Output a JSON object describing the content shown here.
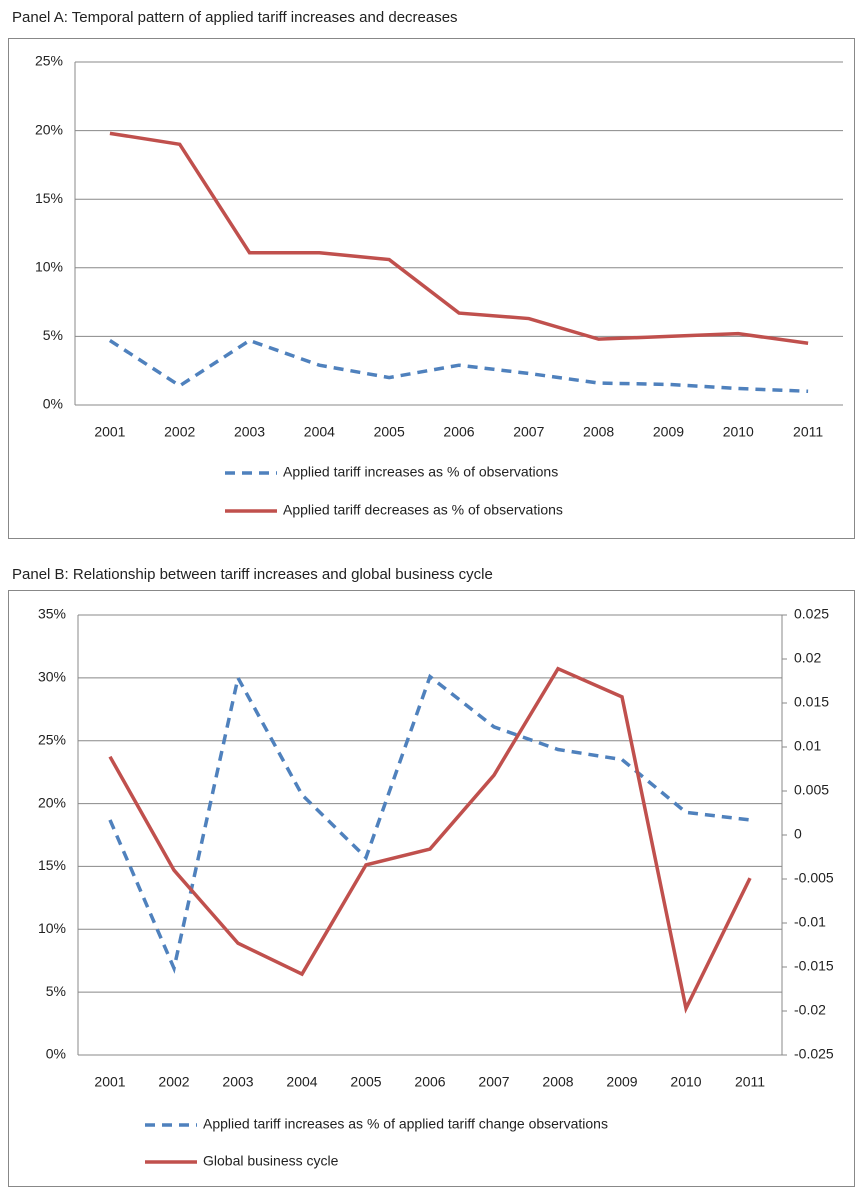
{
  "chart_data": [
    {
      "type": "line",
      "title": "Panel A: Temporal pattern of applied tariff increases and decreases",
      "categories": [
        "2001",
        "2002",
        "2003",
        "2004",
        "2005",
        "2006",
        "2007",
        "2008",
        "2009",
        "2010",
        "2011"
      ],
      "ylim": [
        0,
        25
      ],
      "yticks": [
        {
          "value": 0,
          "label": "0%"
        },
        {
          "value": 5,
          "label": "5%"
        },
        {
          "value": 10,
          "label": "10%"
        },
        {
          "value": 15,
          "label": "15%"
        },
        {
          "value": 20,
          "label": "20%"
        },
        {
          "value": 25,
          "label": "25%"
        }
      ],
      "grid": true,
      "series": [
        {
          "name": "Applied tariff increases as % of observations",
          "color": "#4f81bd",
          "line_style": "dashed",
          "values": [
            4.7,
            1.4,
            4.7,
            2.9,
            2.0,
            2.9,
            2.3,
            1.6,
            1.5,
            1.2,
            1.0
          ]
        },
        {
          "name": "Applied tariff decreases as % of observations",
          "color": "#c0504d",
          "line_style": "solid",
          "values": [
            19.8,
            19.0,
            11.1,
            11.1,
            10.6,
            6.7,
            6.3,
            4.8,
            5.0,
            5.2,
            4.5
          ]
        }
      ]
    },
    {
      "type": "line",
      "title": "Panel B: Relationship between tariff increases and global business cycle",
      "categories": [
        "2001",
        "2002",
        "2003",
        "2004",
        "2005",
        "2006",
        "2007",
        "2008",
        "2009",
        "2010",
        "2011"
      ],
      "ylim": [
        0,
        35
      ],
      "yticks": [
        {
          "value": 0,
          "label": "0%"
        },
        {
          "value": 5,
          "label": "5%"
        },
        {
          "value": 10,
          "label": "10%"
        },
        {
          "value": 15,
          "label": "15%"
        },
        {
          "value": 20,
          "label": "20%"
        },
        {
          "value": 25,
          "label": "25%"
        },
        {
          "value": 30,
          "label": "30%"
        },
        {
          "value": 35,
          "label": "35%"
        }
      ],
      "y2lim": [
        -0.025,
        0.025
      ],
      "y2ticks": [
        -0.025,
        -0.02,
        -0.015,
        -0.01,
        -0.005,
        0,
        0.005,
        0.01,
        0.015,
        0.02,
        0.025
      ],
      "grid": true,
      "series": [
        {
          "name": "Applied tariff increases as % of applied tariff change observations",
          "color": "#4f81bd",
          "line_style": "dashed",
          "values": [
            18.7,
            6.9,
            30.0,
            20.7,
            15.7,
            30.1,
            26.1,
            24.3,
            23.5,
            19.3,
            18.7
          ]
        },
        {
          "name": "Global business cycle",
          "color": "#c0504d",
          "line_style": "solid",
          "axis": "y2",
          "values": [
            0.0089,
            -0.004,
            -0.0123,
            -0.0158,
            -0.0034,
            -0.0016,
            0.0068,
            0.0189,
            0.0157,
            -0.0197,
            -0.0049
          ]
        }
      ]
    }
  ]
}
